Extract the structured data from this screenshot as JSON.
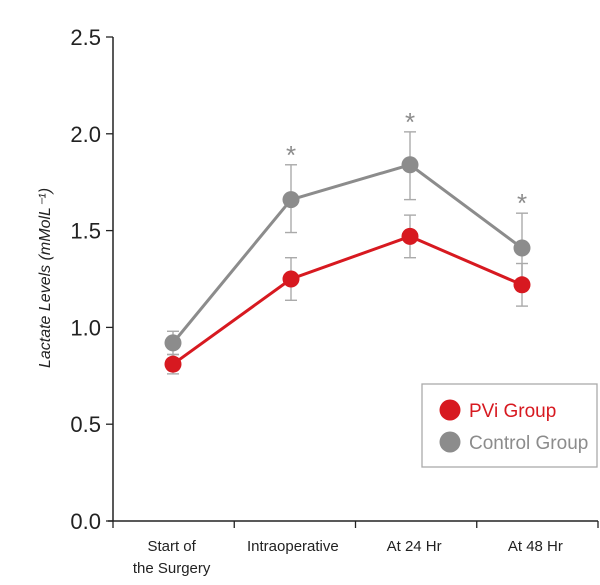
{
  "chart_data": {
    "type": "line",
    "title": "",
    "xlabel": "",
    "ylabel": "Lactate Levels (mMolL⁻¹)",
    "ylim": [
      0,
      2.5
    ],
    "yticks": [
      "0.0",
      "0.5",
      "1.0",
      "1.5",
      "2.0",
      "2.5"
    ],
    "categories": [
      [
        "Start of",
        "the Surgery"
      ],
      [
        "Intraoperative"
      ],
      [
        "At 24 Hr"
      ],
      [
        "At 48 Hr"
      ]
    ],
    "grid": false,
    "legend_position": "bottom-right",
    "series": [
      {
        "name": "PVi Group",
        "color": "#d71920",
        "values": [
          0.81,
          1.25,
          1.47,
          1.22
        ],
        "error_low": [
          0.76,
          1.14,
          1.36,
          1.11
        ],
        "error_high": [
          0.86,
          1.36,
          1.58,
          1.33
        ]
      },
      {
        "name": "Control Group",
        "color": "#8c8c8c",
        "values": [
          0.92,
          1.66,
          1.84,
          1.41
        ],
        "error_low": [
          0.86,
          1.49,
          1.66,
          1.24
        ],
        "error_high": [
          0.98,
          1.84,
          2.01,
          1.59
        ]
      }
    ],
    "annotations": [
      {
        "category": "Intraoperative",
        "text": "*"
      },
      {
        "category": "At 24 Hr",
        "text": "*"
      },
      {
        "category": "At 48 Hr",
        "text": "*"
      }
    ]
  }
}
